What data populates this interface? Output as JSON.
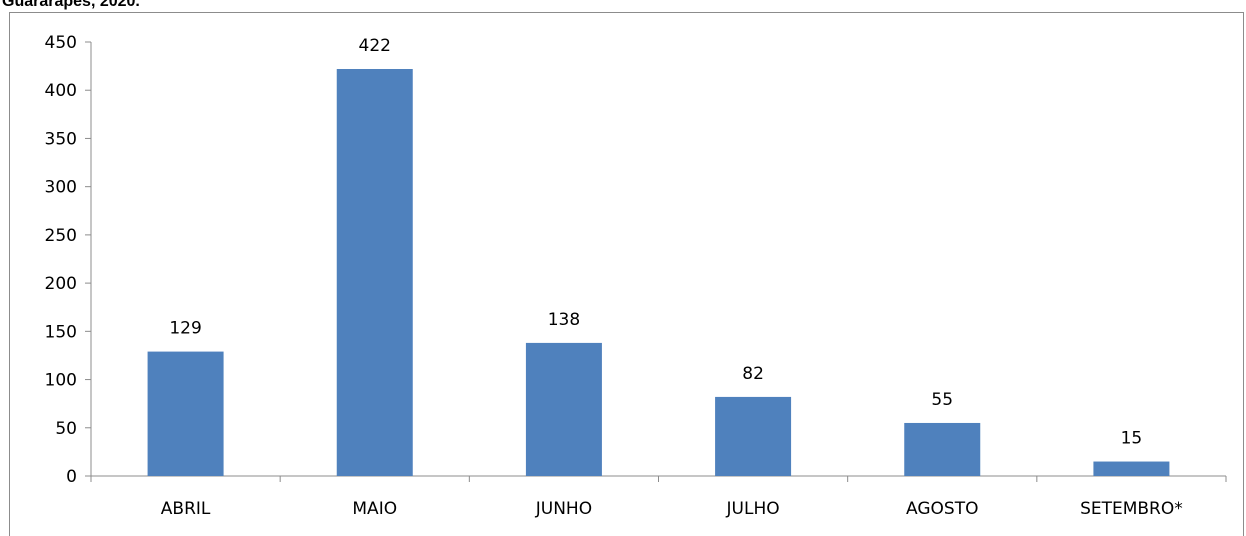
{
  "heading": "Guararapes, 2020.",
  "chart_data": {
    "type": "bar",
    "title": "",
    "xlabel": "",
    "ylabel": "",
    "categories": [
      "ABRIL",
      "MAIO",
      "JUNHO",
      "JULHO",
      "AGOSTO",
      "SETEMBRO*"
    ],
    "values": [
      129,
      422,
      138,
      82,
      55,
      15
    ],
    "ylim": [
      0,
      450
    ],
    "yticks": [
      0,
      50,
      100,
      150,
      200,
      250,
      300,
      350,
      400,
      450
    ],
    "data_labels": true,
    "grid": false,
    "legend": "none",
    "bar_color": "#4f81bd",
    "axis_color": "#8c8c8c"
  }
}
